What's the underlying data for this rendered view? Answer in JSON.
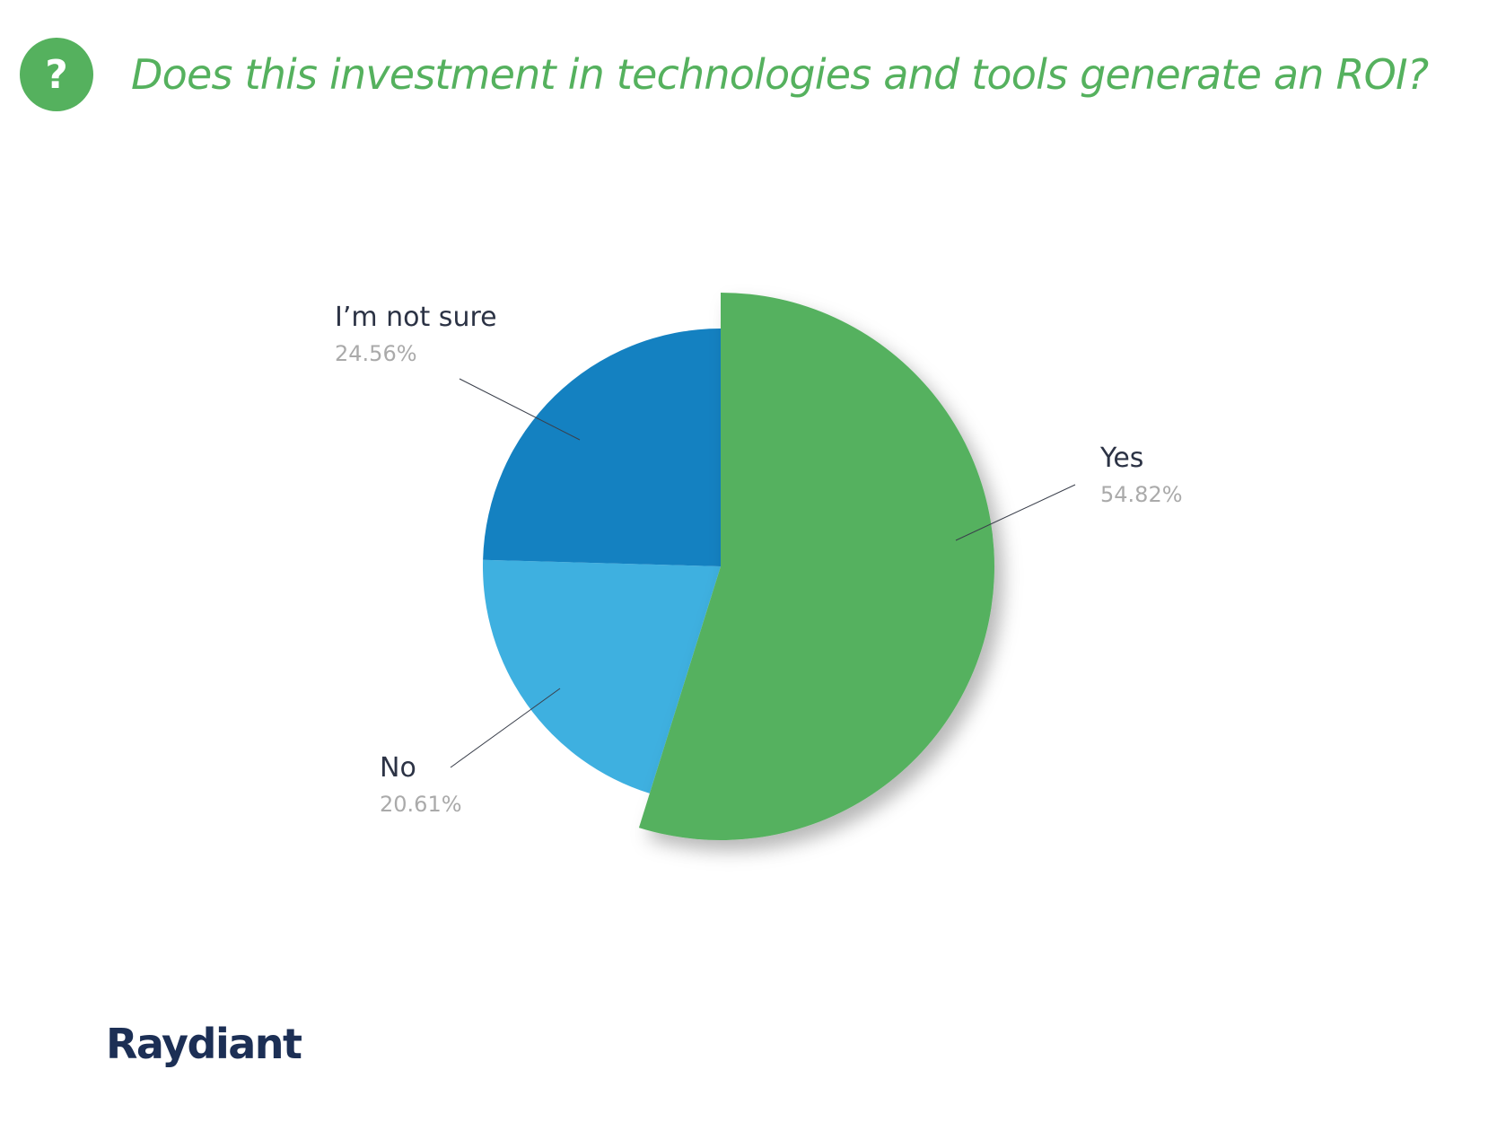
{
  "header": {
    "badge_glyph": "?",
    "title": "Does this investment in technologies and tools generate an ROI?",
    "accent_color": "#55b15e"
  },
  "brand": {
    "name": "Raydiant",
    "color": "#1c2f55"
  },
  "chart_data": {
    "type": "pie",
    "title": "Does this investment in technologies and tools generate an ROI?",
    "slices": [
      {
        "label": "Yes",
        "value": 54.82,
        "value_label": "54.82%",
        "color": "#55b15e",
        "exploded": true
      },
      {
        "label": "No",
        "value": 20.61,
        "value_label": "20.61%",
        "color": "#3eb0e0",
        "exploded": false
      },
      {
        "label": "I’m not sure",
        "value": 24.56,
        "value_label": "24.56%",
        "color": "#1481c1",
        "exploded": false
      }
    ],
    "start_angle": "12 o'clock, clockwise",
    "legend": "none (callout labels)",
    "label_color": "#2c3345",
    "value_label_color": "#aaaaaa"
  }
}
